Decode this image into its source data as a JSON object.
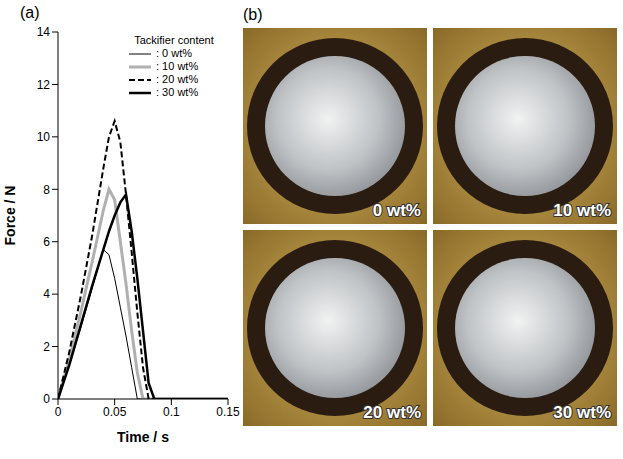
{
  "chart_data": {
    "type": "line",
    "title": "(a)",
    "x_label": "Time / s",
    "y_label": "Force / N",
    "annotations": [
      "Tackifier content"
    ],
    "x": [
      0,
      0.01,
      0.02,
      0.03,
      0.04,
      0.045,
      0.05,
      0.055,
      0.06,
      0.065,
      0.07,
      0.075,
      0.08,
      0.085,
      0.09,
      0.15
    ],
    "series": [
      {
        "name": ": 0 wt%",
        "color": "#000000",
        "line_style": "solid",
        "values": [
          0,
          1.3,
          2.7,
          4.2,
          5.7,
          5.5,
          4.6,
          3.5,
          2.4,
          1.2,
          0,
          0,
          0,
          0,
          0,
          0
        ]
      },
      {
        "name": ": 10 wt%",
        "color": "#b0b0b0",
        "line_style": "solid",
        "values": [
          0,
          1.5,
          3.3,
          5.2,
          7.2,
          8.0,
          7.6,
          6.0,
          4.4,
          2.6,
          1.0,
          0,
          0,
          0,
          0,
          0
        ]
      },
      {
        "name": ": 20 wt%",
        "color": "#000000",
        "line_style": "dashed",
        "values": [
          0,
          1.8,
          3.9,
          6.2,
          8.8,
          10.0,
          10.6,
          9.8,
          7.8,
          5.6,
          3.3,
          1.2,
          0,
          0,
          0,
          0
        ]
      },
      {
        "name": ": 30 wt%",
        "color": "#000000",
        "line_style": "solid",
        "values": [
          0,
          1.3,
          2.8,
          4.3,
          5.7,
          6.4,
          7.0,
          7.5,
          7.8,
          6.4,
          4.6,
          2.6,
          0.6,
          0,
          0,
          0
        ]
      }
    ],
    "xlim": [
      0,
      0.15
    ],
    "xticks": [
      0,
      0.05,
      0.1,
      0.15
    ],
    "ylim": [
      0,
      14
    ],
    "yticks": [
      0,
      2,
      4,
      6,
      8,
      10,
      12,
      14
    ],
    "grid": false,
    "legend": "upper right"
  },
  "panel_b": {
    "label": "(b)",
    "images": [
      {
        "label": "0 wt%"
      },
      {
        "label": "10 wt%"
      },
      {
        "label": "20 wt%"
      },
      {
        "label": "30 wt%"
      }
    ]
  }
}
